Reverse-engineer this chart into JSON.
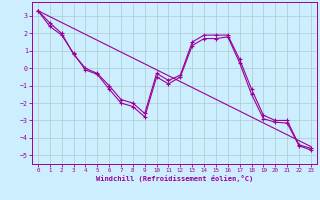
{
  "xlabel": "Windchill (Refroidissement éolien,°C)",
  "background_color": "#cceeff",
  "line_color": "#990099",
  "grid_color": "#aacccc",
  "xlim": [
    -0.5,
    23.5
  ],
  "ylim": [
    -5.5,
    3.8
  ],
  "xticks": [
    0,
    1,
    2,
    3,
    4,
    5,
    6,
    7,
    8,
    9,
    10,
    11,
    12,
    13,
    14,
    15,
    16,
    17,
    18,
    19,
    20,
    21,
    22,
    23
  ],
  "yticks": [
    -5,
    -4,
    -3,
    -2,
    -1,
    0,
    1,
    2,
    3
  ],
  "line1_x": [
    0,
    1,
    2,
    3,
    4,
    5,
    6,
    7,
    8,
    9,
    10,
    11,
    12,
    13,
    14,
    15,
    16,
    17,
    18,
    19,
    20,
    21,
    22,
    23
  ],
  "line1_y": [
    3.3,
    2.6,
    2.0,
    0.8,
    0.0,
    -0.3,
    -1.0,
    -1.8,
    -2.0,
    -2.6,
    -0.3,
    -0.7,
    -0.4,
    1.5,
    1.9,
    1.9,
    1.9,
    0.5,
    -1.2,
    -2.7,
    -3.0,
    -3.0,
    -4.4,
    -4.6
  ],
  "line2_x": [
    0,
    23
  ],
  "line2_y": [
    3.3,
    -4.5
  ],
  "line3_x": [
    0,
    1,
    2,
    3,
    4,
    5,
    6,
    7,
    8,
    9,
    10,
    11,
    12,
    13,
    14,
    15,
    16,
    17,
    18,
    19,
    20,
    21,
    22,
    23
  ],
  "line3_y": [
    3.3,
    2.4,
    1.9,
    0.85,
    -0.1,
    -0.35,
    -1.2,
    -2.0,
    -2.2,
    -2.8,
    -0.5,
    -0.9,
    -0.5,
    1.3,
    1.7,
    1.7,
    1.8,
    0.3,
    -1.5,
    -2.9,
    -3.1,
    -3.15,
    -4.45,
    -4.7
  ]
}
